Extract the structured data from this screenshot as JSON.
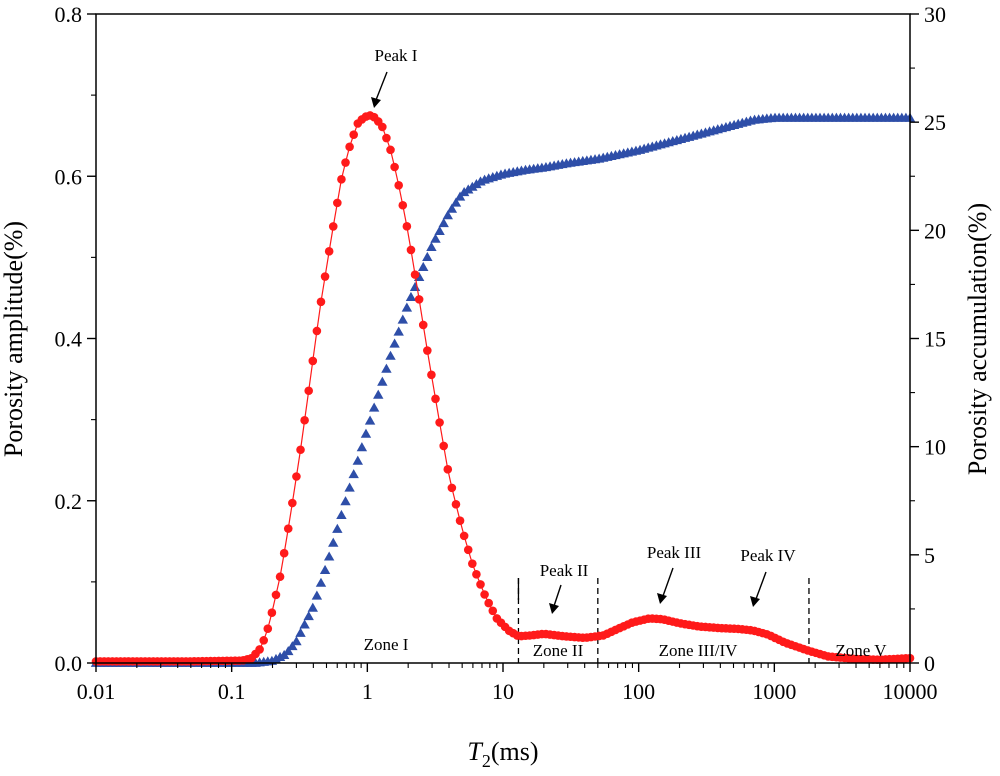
{
  "chart_data": {
    "type": "line",
    "title": "",
    "xlabel": {
      "italic": "T",
      "sub": "2",
      "rest": "(ms)"
    },
    "ylabel": "Porosity amplitude(%)",
    "y2label": "Porosity accumulation(%)",
    "xscale": "log",
    "xlim": [
      0.01,
      10000
    ],
    "ylim": [
      0,
      0.8
    ],
    "y2lim": [
      0,
      30
    ],
    "x_ticks": [
      {
        "value": 0.01,
        "label": "0.01"
      },
      {
        "value": 0.1,
        "label": "0.1"
      },
      {
        "value": 1,
        "label": "1"
      },
      {
        "value": 10,
        "label": "10"
      },
      {
        "value": 100,
        "label": "100"
      },
      {
        "value": 1000,
        "label": "1000"
      },
      {
        "value": 10000,
        "label": "10000"
      }
    ],
    "y_ticks": [
      {
        "value": 0.0,
        "label": "0.0"
      },
      {
        "value": 0.2,
        "label": "0.2"
      },
      {
        "value": 0.4,
        "label": "0.4"
      },
      {
        "value": 0.6,
        "label": "0.6"
      },
      {
        "value": 0.8,
        "label": "0.8"
      }
    ],
    "y2_ticks": [
      {
        "value": 0,
        "label": "0"
      },
      {
        "value": 5,
        "label": "5"
      },
      {
        "value": 10,
        "label": "10"
      },
      {
        "value": 15,
        "label": "15"
      },
      {
        "value": 20,
        "label": "20"
      },
      {
        "value": 25,
        "label": "25"
      },
      {
        "value": 30,
        "label": "30"
      }
    ],
    "series": [
      {
        "name": "Porosity amplitude",
        "axis": "left",
        "color": "#ff1a1a",
        "marker": "circle",
        "x": [
          0.01,
          0.05,
          0.12,
          0.14,
          0.16,
          0.18,
          0.2,
          0.23,
          0.27,
          0.32,
          0.38,
          0.45,
          0.55,
          0.65,
          0.75,
          0.85,
          0.95,
          1.05,
          1.15,
          1.3,
          1.5,
          1.75,
          2.0,
          2.4,
          2.8,
          3.3,
          4.0,
          5.0,
          6.0,
          7.5,
          9.0,
          11.0,
          13.0,
          16.0,
          20.0,
          28.0,
          40.0,
          55.0,
          70.0,
          90.0,
          120.0,
          150.0,
          200.0,
          280.0,
          400.0,
          550.0,
          700.0,
          900.0,
          1200.0,
          1800.0,
          2500.0,
          4000.0,
          6000.0,
          10000.0
        ],
        "values": [
          0.002,
          0.002,
          0.003,
          0.006,
          0.016,
          0.035,
          0.065,
          0.11,
          0.18,
          0.26,
          0.35,
          0.44,
          0.53,
          0.6,
          0.64,
          0.665,
          0.673,
          0.675,
          0.672,
          0.66,
          0.63,
          0.58,
          0.53,
          0.45,
          0.38,
          0.31,
          0.23,
          0.165,
          0.12,
          0.08,
          0.055,
          0.04,
          0.033,
          0.034,
          0.036,
          0.033,
          0.031,
          0.034,
          0.042,
          0.05,
          0.055,
          0.054,
          0.049,
          0.045,
          0.043,
          0.042,
          0.04,
          0.035,
          0.025,
          0.015,
          0.008,
          0.005,
          0.004,
          0.006
        ]
      },
      {
        "name": "Porosity accumulation",
        "axis": "right",
        "color": "#2e4ea8",
        "marker": "triangle",
        "x": [
          0.01,
          0.1,
          0.15,
          0.2,
          0.25,
          0.3,
          0.4,
          0.5,
          0.7,
          1.0,
          1.5,
          2.0,
          3.0,
          4.0,
          5.0,
          7.0,
          10.0,
          15.0,
          20.0,
          30.0,
          50.0,
          100.0,
          200.0,
          400.0,
          700.0,
          1000.0,
          2000.0,
          5000.0,
          10000.0
        ],
        "values": [
          0.0,
          0.0,
          0.0,
          0.1,
          0.4,
          1.0,
          2.6,
          4.5,
          7.6,
          10.8,
          14.3,
          16.6,
          19.3,
          20.8,
          21.7,
          22.3,
          22.6,
          22.8,
          22.9,
          23.1,
          23.3,
          23.7,
          24.2,
          24.7,
          25.1,
          25.2,
          25.2,
          25.2,
          25.2
        ]
      }
    ],
    "annotations": [
      {
        "id": "peak-1",
        "text": "Peak I"
      },
      {
        "id": "peak-2",
        "text": "Peak II"
      },
      {
        "id": "peak-3",
        "text": "Peak III"
      },
      {
        "id": "peak-4",
        "text": "Peak IV"
      },
      {
        "id": "zone-1",
        "text": "Zone I"
      },
      {
        "id": "zone-2",
        "text": "Zone II"
      },
      {
        "id": "zone-34",
        "text": "Zone III/IV"
      },
      {
        "id": "zone-5",
        "text": "Zone V"
      }
    ],
    "zone_boundaries_ms": [
      13,
      50,
      1800
    ]
  }
}
